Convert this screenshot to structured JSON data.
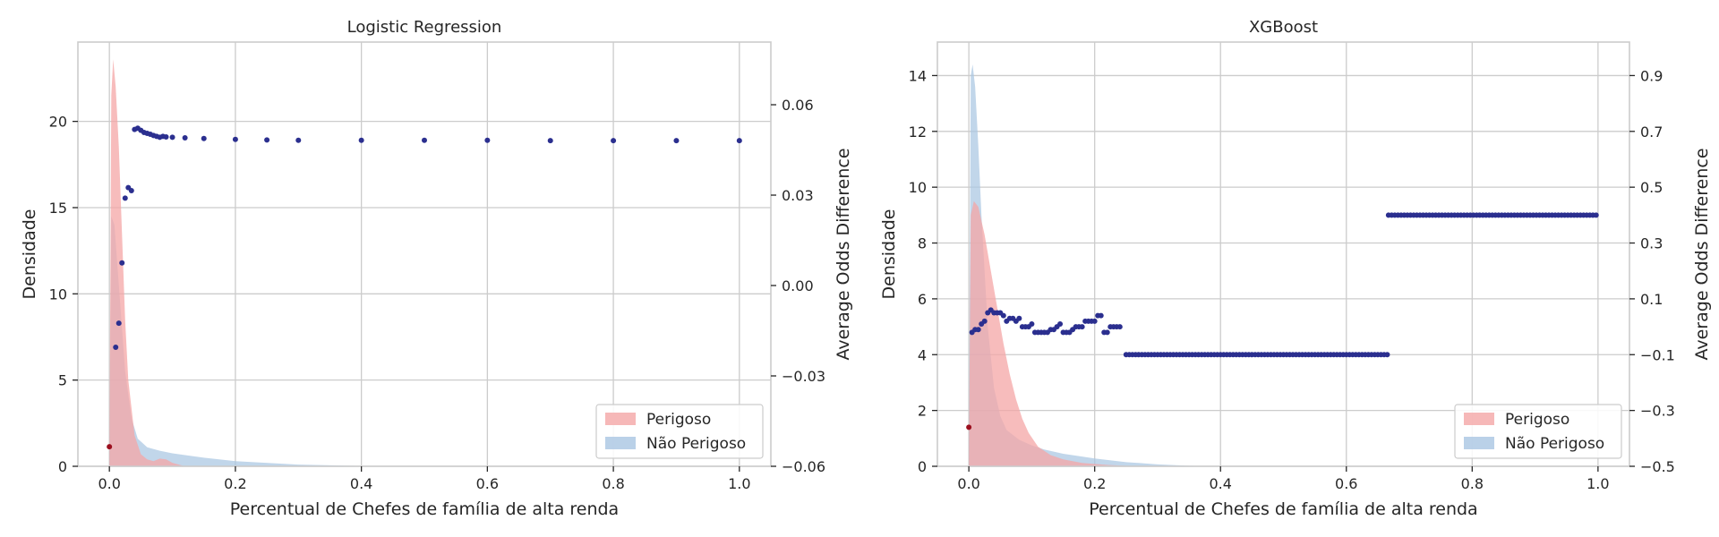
{
  "colors": {
    "perigoso": "#f4a6a6",
    "nao_perigoso": "#a9c6e2",
    "odds_points": "#2b2f8f",
    "first_point": "#9b0f1e",
    "grid": "#cccccc"
  },
  "chart_data": [
    {
      "type": "area",
      "title": "Logistic Regression",
      "xlabel": "Percentual de Chefes de família de alta renda",
      "ylabel": "Densidade",
      "y2label": "Average Odds Difference",
      "xlim": [
        -0.05,
        1.05
      ],
      "ylim": [
        0,
        24.6
      ],
      "y2lim": [
        -0.06,
        0.0808
      ],
      "xticks": [
        0.0,
        0.2,
        0.4,
        0.6,
        0.8,
        1.0
      ],
      "xtick_labels": [
        "0.0",
        "0.2",
        "0.4",
        "0.6",
        "0.8",
        "1.0"
      ],
      "yticks": [
        0,
        5,
        10,
        15,
        20
      ],
      "ytick_labels": [
        "0",
        "5",
        "10",
        "15",
        "20"
      ],
      "y2ticks": [
        -0.06,
        -0.03,
        0.0,
        0.03,
        0.06
      ],
      "y2tick_labels": [
        "−0.06",
        "−0.03",
        "0.00",
        "0.03",
        "0.06"
      ],
      "grid": true,
      "legend": {
        "position": "lower right",
        "entries": [
          "Perigoso",
          "Não Perigoso"
        ]
      },
      "series": [
        {
          "name": "Perigoso",
          "kind": "density",
          "x": [
            0.0,
            0.003,
            0.006,
            0.01,
            0.015,
            0.02,
            0.025,
            0.03,
            0.04,
            0.05,
            0.06,
            0.07,
            0.08,
            0.09,
            0.1,
            0.12
          ],
          "y": [
            0,
            21.5,
            23.6,
            22.0,
            18.5,
            13.5,
            8.5,
            5.0,
            1.8,
            0.7,
            0.4,
            0.3,
            0.45,
            0.4,
            0.2,
            0
          ]
        },
        {
          "name": "Não Perigoso",
          "kind": "density",
          "x": [
            0.0,
            0.003,
            0.008,
            0.015,
            0.025,
            0.035,
            0.045,
            0.06,
            0.08,
            0.1,
            0.15,
            0.2,
            0.3,
            0.4,
            0.5
          ],
          "y": [
            0,
            14.5,
            14.0,
            10.5,
            5.5,
            2.8,
            1.6,
            1.1,
            0.9,
            0.75,
            0.5,
            0.3,
            0.1,
            0.02,
            0
          ]
        },
        {
          "name": "Average Odds Difference",
          "kind": "scatter",
          "axis": "right",
          "first_point": {
            "x": 0.0,
            "y": -0.0535
          },
          "x": [
            0.01,
            0.015,
            0.02,
            0.025,
            0.03,
            0.035,
            0.04,
            0.045,
            0.05,
            0.055,
            0.06,
            0.065,
            0.07,
            0.075,
            0.08,
            0.085,
            0.09,
            0.1,
            0.12,
            0.15,
            0.2,
            0.25,
            0.3,
            0.4,
            0.5,
            0.6,
            0.7,
            0.8,
            0.9,
            1.0
          ],
          "y": [
            -0.0205,
            -0.0125,
            0.0075,
            0.029,
            0.0325,
            0.0315,
            0.0518,
            0.0522,
            0.0515,
            0.0508,
            0.0505,
            0.0502,
            0.0498,
            0.0495,
            0.0492,
            0.0495,
            0.0493,
            0.0492,
            0.049,
            0.0488,
            0.0485,
            0.0483,
            0.0482,
            0.0482,
            0.0482,
            0.0482,
            0.0481,
            0.0481,
            0.0481,
            0.0481
          ]
        }
      ]
    },
    {
      "type": "area",
      "title": "XGBoost",
      "xlabel": "Percentual de Chefes de família de alta renda",
      "ylabel": "Densidade",
      "y2label": "Average Odds Difference",
      "xlim": [
        -0.05,
        1.05
      ],
      "ylim": [
        0,
        15.2
      ],
      "y2lim": [
        -0.5,
        1.02
      ],
      "xticks": [
        0.0,
        0.2,
        0.4,
        0.6,
        0.8,
        1.0
      ],
      "xtick_labels": [
        "0.0",
        "0.2",
        "0.4",
        "0.6",
        "0.8",
        "1.0"
      ],
      "yticks": [
        0,
        2,
        4,
        6,
        8,
        10,
        12,
        14
      ],
      "ytick_labels": [
        "0",
        "2",
        "4",
        "6",
        "8",
        "10",
        "12",
        "14"
      ],
      "y2ticks": [
        -0.5,
        -0.3,
        -0.1,
        0.1,
        0.3,
        0.5,
        0.7,
        0.9
      ],
      "y2tick_labels": [
        "−0.5",
        "−0.3",
        "−0.1",
        "0.1",
        "0.3",
        "0.5",
        "0.7",
        "0.9"
      ],
      "grid": true,
      "legend": {
        "position": "lower right",
        "entries": [
          "Perigoso",
          "Não Perigoso"
        ]
      },
      "series": [
        {
          "name": "Perigoso",
          "kind": "density",
          "x": [
            0.0,
            0.003,
            0.008,
            0.015,
            0.025,
            0.035,
            0.045,
            0.055,
            0.065,
            0.075,
            0.085,
            0.095,
            0.11,
            0.13,
            0.15,
            0.18,
            0.22,
            0.26,
            0.3
          ],
          "y": [
            0,
            9.0,
            9.5,
            9.3,
            8.3,
            7.0,
            5.7,
            4.4,
            3.3,
            2.4,
            1.7,
            1.2,
            0.7,
            0.4,
            0.25,
            0.12,
            0.05,
            0.01,
            0
          ]
        },
        {
          "name": "Não Perigoso",
          "kind": "density",
          "x": [
            0.0,
            0.003,
            0.006,
            0.01,
            0.015,
            0.02,
            0.03,
            0.04,
            0.05,
            0.06,
            0.08,
            0.1,
            0.12,
            0.15,
            0.2,
            0.25,
            0.3,
            0.35,
            0.4
          ],
          "y": [
            0,
            14.0,
            14.4,
            13.6,
            11.5,
            9.0,
            5.0,
            2.8,
            1.8,
            1.3,
            0.95,
            0.75,
            0.6,
            0.45,
            0.28,
            0.15,
            0.07,
            0.02,
            0
          ]
        },
        {
          "name": "Average Odds Difference",
          "kind": "scatter",
          "axis": "right",
          "first_point": {
            "x": 0.0,
            "y": -0.36
          },
          "segments": [
            {
              "x": [
                0.005,
                0.01,
                0.015,
                0.02,
                0.025,
                0.03,
                0.035,
                0.04,
                0.045,
                0.05,
                0.055,
                0.06,
                0.065,
                0.07,
                0.075,
                0.08,
                0.085,
                0.09,
                0.095,
                0.1,
                0.105,
                0.11,
                0.115,
                0.12,
                0.125,
                0.13,
                0.135,
                0.14,
                0.145,
                0.15,
                0.155,
                0.16,
                0.165,
                0.17,
                0.175,
                0.18,
                0.185,
                0.19,
                0.195,
                0.2,
                0.205,
                0.21,
                0.215,
                0.22,
                0.225,
                0.23,
                0.235,
                0.24
              ],
              "y": [
                -0.02,
                -0.01,
                -0.01,
                0.01,
                0.02,
                0.05,
                0.06,
                0.05,
                0.05,
                0.05,
                0.04,
                0.02,
                0.03,
                0.03,
                0.02,
                0.03,
                0.0,
                0.0,
                0.0,
                0.01,
                -0.02,
                -0.02,
                -0.02,
                -0.02,
                -0.02,
                -0.01,
                -0.01,
                0.0,
                0.01,
                -0.02,
                -0.02,
                -0.02,
                -0.01,
                0.0,
                0.0,
                0.0,
                0.02,
                0.02,
                0.02,
                0.02,
                0.04,
                0.04,
                -0.02,
                -0.02,
                0.0,
                0.0,
                0.0,
                0.0
              ]
            },
            {
              "x_start": 0.25,
              "x_end": 0.665,
              "step": 0.005,
              "y": -0.1
            },
            {
              "x_start": 0.667,
              "x_end": 1.0,
              "step": 0.005,
              "y": 0.4
            }
          ]
        }
      ]
    }
  ]
}
